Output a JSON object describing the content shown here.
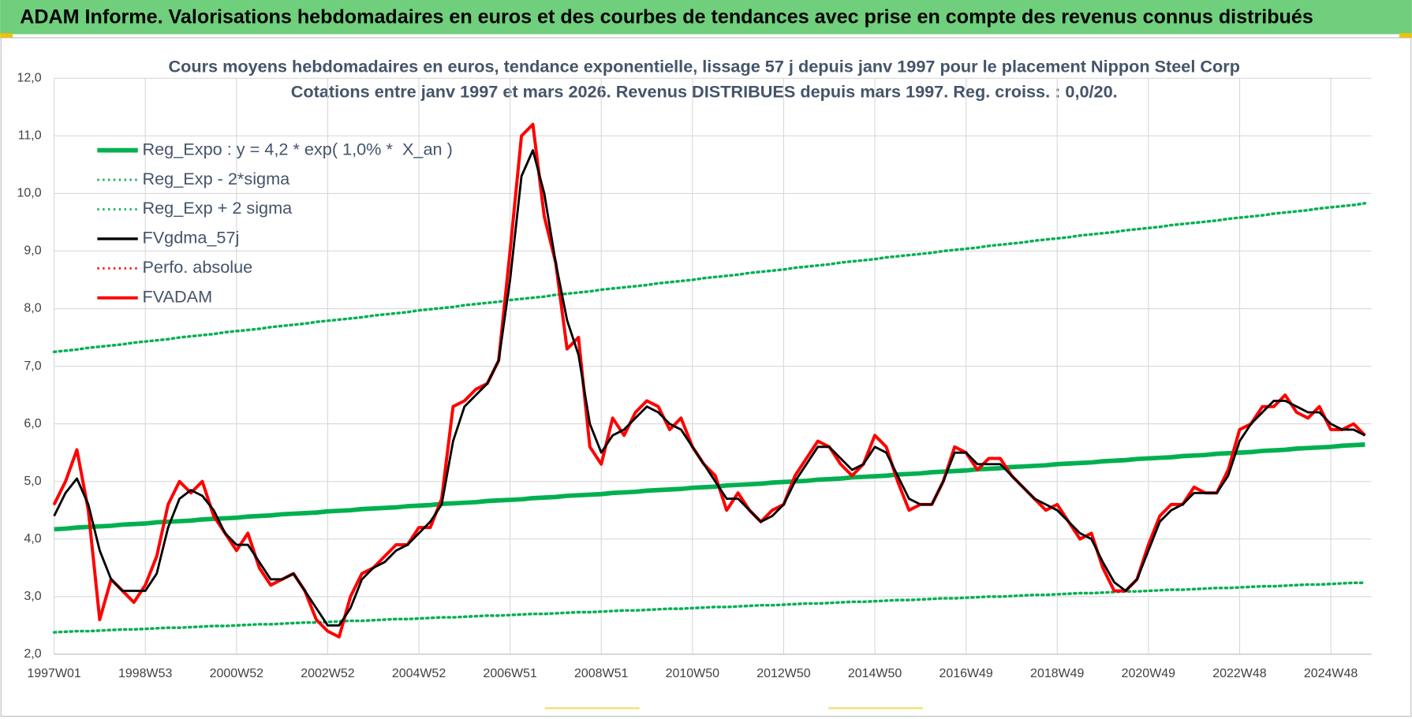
{
  "header": {
    "title": "ADAM Informe. Valorisations hebdomadaires en euros et des courbes de tendances avec prise en compte des revenus connus distribués"
  },
  "chart_data": {
    "type": "line",
    "title": "Cours moyens hebdomadaires en euros, tendance exponentielle, lissage 57 j depuis janv 1997  pour le placement Nippon Steel Corp",
    "subtitle": "Cotations entre janv 1997 et mars 2026. Revenus DISTRIBUES depuis mars 1997.  Reg. croiss. : 0,0/20.",
    "categories": [
      "1997W01",
      null,
      null,
      null,
      null,
      null,
      null,
      null,
      "1998W53",
      null,
      null,
      null,
      null,
      null,
      null,
      null,
      "2000W52",
      null,
      null,
      null,
      null,
      null,
      null,
      null,
      "2002W52",
      null,
      null,
      null,
      null,
      null,
      null,
      null,
      "2004W52",
      null,
      null,
      null,
      null,
      null,
      null,
      null,
      "2006W51",
      null,
      null,
      null,
      null,
      null,
      null,
      null,
      "2008W51",
      null,
      null,
      null,
      null,
      null,
      null,
      null,
      "2010W50",
      null,
      null,
      null,
      null,
      null,
      null,
      null,
      "2012W50",
      null,
      null,
      null,
      null,
      null,
      null,
      null,
      "2014W50",
      null,
      null,
      null,
      null,
      null,
      null,
      null,
      "2016W49",
      null,
      null,
      null,
      null,
      null,
      null,
      null,
      "2018W49",
      null,
      null,
      null,
      null,
      null,
      null,
      null,
      "2020W49",
      null,
      null,
      null,
      null,
      null,
      null,
      null,
      "2022W48",
      null,
      null,
      null,
      null,
      null,
      null,
      null,
      "2024W48",
      null,
      null,
      null
    ],
    "ylim": [
      2,
      12
    ],
    "yticks": [
      {
        "value": 2,
        "label": "2,0"
      },
      {
        "value": 3,
        "label": "3,0"
      },
      {
        "value": 4,
        "label": "4,0"
      },
      {
        "value": 5,
        "label": "5,0"
      },
      {
        "value": 6,
        "label": "6,0"
      },
      {
        "value": 7,
        "label": "7,0"
      },
      {
        "value": 8,
        "label": "8,0"
      },
      {
        "value": 9,
        "label": "9,0"
      },
      {
        "value": 10,
        "label": "10,0"
      },
      {
        "value": 11,
        "label": "11,0"
      },
      {
        "value": 12,
        "label": "12,0"
      }
    ],
    "grid": true,
    "legend": "top-left",
    "series": [
      {
        "name": "Reg_Expo : y = 4,2 * exp( 1,0% *  X_an )",
        "color": "#00b050",
        "style": "solid",
        "width": 5,
        "values": [
          4.17,
          4.18,
          4.2,
          4.21,
          4.22,
          4.23,
          4.25,
          4.26,
          4.27,
          4.29,
          4.3,
          4.31,
          4.32,
          4.34,
          4.35,
          4.36,
          4.37,
          4.39,
          4.4,
          4.41,
          4.43,
          4.44,
          4.45,
          4.46,
          4.48,
          4.49,
          4.5,
          4.52,
          4.53,
          4.54,
          4.55,
          4.57,
          4.58,
          4.59,
          4.61,
          4.62,
          4.63,
          4.64,
          4.66,
          4.67,
          4.68,
          4.69,
          4.71,
          4.72,
          4.73,
          4.75,
          4.76,
          4.77,
          4.78,
          4.8,
          4.81,
          4.82,
          4.84,
          4.85,
          4.86,
          4.87,
          4.89,
          4.9,
          4.91,
          4.93,
          4.94,
          4.95,
          4.96,
          4.98,
          4.99,
          5.0,
          5.01,
          5.03,
          5.04,
          5.05,
          5.07,
          5.08,
          5.09,
          5.1,
          5.12,
          5.13,
          5.14,
          5.16,
          5.17,
          5.18,
          5.19,
          5.21,
          5.22,
          5.23,
          5.25,
          5.26,
          5.27,
          5.28,
          5.3,
          5.31,
          5.32,
          5.33,
          5.35,
          5.36,
          5.37,
          5.39,
          5.4,
          5.41,
          5.42,
          5.44,
          5.45,
          5.46,
          5.48,
          5.49,
          5.5,
          5.51,
          5.53,
          5.54,
          5.55,
          5.57,
          5.58,
          5.59,
          5.6,
          5.62,
          5.63,
          5.64
        ]
      },
      {
        "name": "Reg_Exp - 2*sigma",
        "color": "#00b050",
        "style": "dotted",
        "width": 3,
        "values": [
          2.38,
          2.39,
          2.4,
          2.4,
          2.41,
          2.42,
          2.43,
          2.43,
          2.44,
          2.45,
          2.46,
          2.46,
          2.47,
          2.48,
          2.49,
          2.49,
          2.5,
          2.51,
          2.52,
          2.52,
          2.53,
          2.54,
          2.55,
          2.55,
          2.56,
          2.57,
          2.58,
          2.58,
          2.59,
          2.6,
          2.61,
          2.61,
          2.62,
          2.63,
          2.64,
          2.64,
          2.65,
          2.66,
          2.67,
          2.67,
          2.68,
          2.69,
          2.7,
          2.7,
          2.71,
          2.72,
          2.73,
          2.73,
          2.74,
          2.75,
          2.76,
          2.76,
          2.77,
          2.78,
          2.79,
          2.79,
          2.8,
          2.81,
          2.82,
          2.82,
          2.83,
          2.84,
          2.85,
          2.85,
          2.86,
          2.87,
          2.88,
          2.88,
          2.89,
          2.9,
          2.91,
          2.91,
          2.92,
          2.93,
          2.94,
          2.94,
          2.95,
          2.96,
          2.97,
          2.97,
          2.98,
          2.99,
          3.0,
          3.0,
          3.01,
          3.02,
          3.03,
          3.03,
          3.04,
          3.05,
          3.06,
          3.06,
          3.07,
          3.08,
          3.09,
          3.09,
          3.1,
          3.11,
          3.12,
          3.12,
          3.13,
          3.14,
          3.15,
          3.15,
          3.16,
          3.17,
          3.18,
          3.18,
          3.19,
          3.2,
          3.21,
          3.21,
          3.22,
          3.23,
          3.24,
          3.24
        ]
      },
      {
        "name": "Reg_Exp + 2 sigma",
        "color": "#00b050",
        "style": "dotted",
        "width": 3,
        "values": [
          7.25,
          7.27,
          7.29,
          7.32,
          7.34,
          7.36,
          7.38,
          7.41,
          7.43,
          7.45,
          7.47,
          7.5,
          7.52,
          7.54,
          7.56,
          7.59,
          7.61,
          7.63,
          7.65,
          7.68,
          7.7,
          7.72,
          7.74,
          7.77,
          7.79,
          7.81,
          7.83,
          7.85,
          7.88,
          7.9,
          7.92,
          7.94,
          7.97,
          7.99,
          8.01,
          8.03,
          8.06,
          8.08,
          8.1,
          8.12,
          8.15,
          8.17,
          8.19,
          8.21,
          8.24,
          8.26,
          8.28,
          8.3,
          8.33,
          8.35,
          8.37,
          8.39,
          8.41,
          8.44,
          8.46,
          8.48,
          8.5,
          8.53,
          8.55,
          8.57,
          8.59,
          8.62,
          8.64,
          8.66,
          8.68,
          8.71,
          8.73,
          8.75,
          8.77,
          8.8,
          8.82,
          8.84,
          8.86,
          8.89,
          8.91,
          8.93,
          8.95,
          8.97,
          9.0,
          9.02,
          9.04,
          9.06,
          9.09,
          9.11,
          9.13,
          9.15,
          9.18,
          9.2,
          9.22,
          9.24,
          9.27,
          9.29,
          9.31,
          9.33,
          9.36,
          9.38,
          9.4,
          9.42,
          9.45,
          9.47,
          9.49,
          9.51,
          9.53,
          9.56,
          9.58,
          9.6,
          9.62,
          9.65,
          9.67,
          9.69,
          9.71,
          9.74,
          9.76,
          9.78,
          9.8,
          9.83
        ]
      },
      {
        "name": "FVgdma_57j",
        "color": "#000000",
        "style": "solid",
        "width": 2.5,
        "values": [
          4.4,
          4.8,
          5.05,
          4.6,
          3.8,
          3.3,
          3.1,
          3.1,
          3.1,
          3.4,
          4.2,
          4.7,
          4.85,
          4.75,
          4.5,
          4.1,
          3.9,
          3.9,
          3.6,
          3.3,
          3.3,
          3.4,
          3.1,
          2.8,
          2.5,
          2.5,
          2.8,
          3.3,
          3.5,
          3.6,
          3.8,
          3.9,
          4.1,
          4.3,
          4.6,
          5.7,
          6.3,
          6.5,
          6.7,
          7.1,
          8.5,
          10.3,
          10.75,
          10.0,
          8.8,
          7.8,
          7.2,
          6.0,
          5.5,
          5.8,
          5.9,
          6.1,
          6.3,
          6.2,
          6.0,
          5.9,
          5.6,
          5.3,
          5.0,
          4.7,
          4.7,
          4.5,
          4.3,
          4.4,
          4.6,
          5.0,
          5.3,
          5.6,
          5.6,
          5.4,
          5.2,
          5.3,
          5.6,
          5.5,
          5.1,
          4.7,
          4.6,
          4.6,
          5.0,
          5.5,
          5.5,
          5.3,
          5.3,
          5.3,
          5.1,
          4.9,
          4.7,
          4.6,
          4.5,
          4.3,
          4.1,
          4.0,
          3.6,
          3.25,
          3.1,
          3.3,
          3.8,
          4.3,
          4.5,
          4.6,
          4.8,
          4.8,
          4.8,
          5.1,
          5.7,
          6.0,
          6.2,
          6.4,
          6.4,
          6.3,
          6.2,
          6.2,
          6.0,
          5.9,
          5.9,
          5.8
        ]
      },
      {
        "name": "Perfo. absolue",
        "color": "#ff0000",
        "style": "dotted",
        "width": 2,
        "values": [
          4.6,
          5.0,
          5.55,
          4.5,
          2.6,
          3.3,
          3.1,
          2.9,
          3.2,
          3.7,
          4.6,
          5.0,
          4.8,
          5.0,
          4.4,
          4.1,
          3.8,
          4.1,
          3.5,
          3.2,
          3.3,
          3.4,
          3.1,
          2.6,
          2.4,
          2.3,
          3.0,
          3.4,
          3.5,
          3.7,
          3.9,
          3.9,
          4.2,
          4.2,
          4.7,
          6.3,
          6.4,
          6.6,
          6.7,
          7.1,
          9.0,
          11.0,
          11.2,
          9.6,
          8.8,
          7.3,
          7.5,
          5.6,
          5.3,
          6.1,
          5.8,
          6.2,
          6.4,
          6.3,
          5.9,
          6.1,
          5.6,
          5.3,
          5.1,
          4.5,
          4.8,
          4.5,
          4.3,
          4.5,
          4.6,
          5.1,
          5.4,
          5.7,
          5.6,
          5.3,
          5.1,
          5.3,
          5.8,
          5.6,
          5.0,
          4.5,
          4.6,
          4.6,
          5.0,
          5.6,
          5.5,
          5.2,
          5.4,
          5.4,
          5.1,
          4.9,
          4.7,
          4.5,
          4.6,
          4.3,
          4.0,
          4.1,
          3.5,
          3.1,
          3.1,
          3.3,
          3.9,
          4.4,
          4.6,
          4.6,
          4.9,
          4.8,
          4.8,
          5.2,
          5.9,
          6.0,
          6.3,
          6.3,
          6.5,
          6.2,
          6.1,
          6.3,
          5.9,
          5.9,
          6.0,
          5.8
        ]
      },
      {
        "name": "FVADAM",
        "color": "#ff0000",
        "style": "solid",
        "width": 3.5,
        "values": [
          4.6,
          5.0,
          5.55,
          4.5,
          2.6,
          3.3,
          3.1,
          2.9,
          3.2,
          3.7,
          4.6,
          5.0,
          4.8,
          5.0,
          4.4,
          4.1,
          3.8,
          4.1,
          3.5,
          3.2,
          3.3,
          3.4,
          3.1,
          2.6,
          2.4,
          2.3,
          3.0,
          3.4,
          3.5,
          3.7,
          3.9,
          3.9,
          4.2,
          4.2,
          4.7,
          6.3,
          6.4,
          6.6,
          6.7,
          7.1,
          9.0,
          11.0,
          11.2,
          9.6,
          8.8,
          7.3,
          7.5,
          5.6,
          5.3,
          6.1,
          5.8,
          6.2,
          6.4,
          6.3,
          5.9,
          6.1,
          5.6,
          5.3,
          5.1,
          4.5,
          4.8,
          4.5,
          4.3,
          4.5,
          4.6,
          5.1,
          5.4,
          5.7,
          5.6,
          5.3,
          5.1,
          5.3,
          5.8,
          5.6,
          5.0,
          4.5,
          4.6,
          4.6,
          5.0,
          5.6,
          5.5,
          5.2,
          5.4,
          5.4,
          5.1,
          4.9,
          4.7,
          4.5,
          4.6,
          4.3,
          4.0,
          4.1,
          3.5,
          3.1,
          3.1,
          3.3,
          3.9,
          4.4,
          4.6,
          4.6,
          4.9,
          4.8,
          4.8,
          5.2,
          5.9,
          6.0,
          6.3,
          6.3,
          6.5,
          6.2,
          6.1,
          6.3,
          5.9,
          5.9,
          6.0,
          5.8
        ]
      }
    ]
  }
}
